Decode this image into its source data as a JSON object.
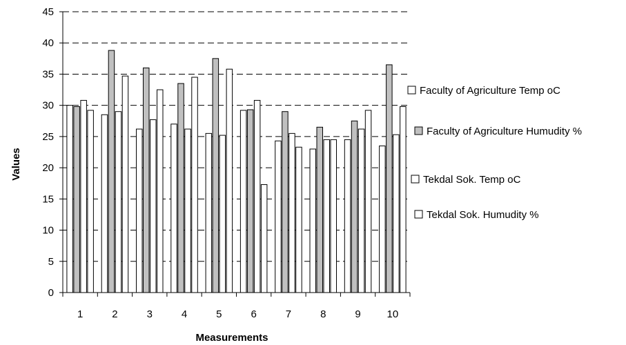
{
  "chart_data": {
    "type": "bar",
    "title": "",
    "xlabel": "Measurements",
    "ylabel": "Values",
    "ylim": [
      0,
      45
    ],
    "yticks": [
      "0",
      "5",
      "10",
      "15",
      "20",
      "25",
      "30",
      "35",
      "40",
      "45"
    ],
    "categories": [
      "1",
      "2",
      "3",
      "4",
      "5",
      "6",
      "7",
      "8",
      "9",
      "10"
    ],
    "grid": "horizontal dashed",
    "legend_position": "right",
    "series": [
      {
        "name": "Faculty of Agriculture Temp oC",
        "color": "#ffffff",
        "values": [
          30.0,
          28.5,
          26.2,
          27.0,
          25.5,
          29.2,
          24.3,
          23.0,
          24.5,
          23.5
        ]
      },
      {
        "name": "Faculty of Agriculture Humudity %",
        "color": "#c0c0c0",
        "values": [
          29.8,
          38.8,
          36.0,
          33.5,
          37.5,
          29.3,
          29.0,
          26.5,
          27.5,
          36.5
        ]
      },
      {
        "name": "Tekdal Sok. Temp oC",
        "color": "#ffffff",
        "values": [
          30.8,
          29.0,
          27.7,
          26.2,
          25.2,
          30.8,
          25.5,
          24.5,
          26.2,
          25.3
        ]
      },
      {
        "name": "Tekdal Sok. Humudity %",
        "color": "#ffffff",
        "values": [
          29.2,
          34.7,
          32.5,
          34.5,
          35.8,
          17.3,
          23.3,
          24.5,
          29.2,
          29.8
        ]
      }
    ]
  }
}
